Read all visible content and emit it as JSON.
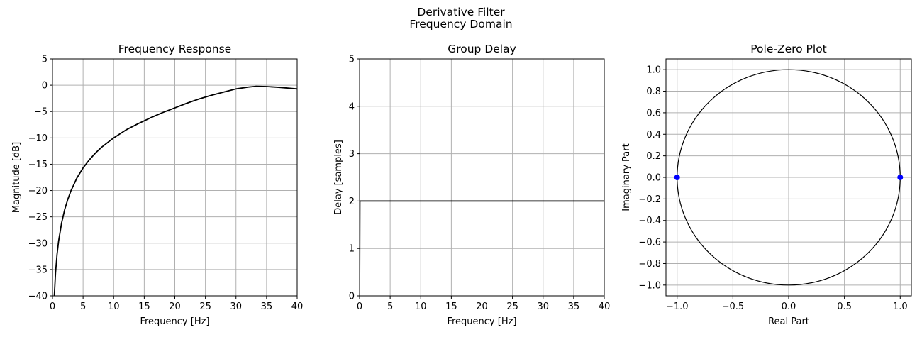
{
  "figure": {
    "suptitle_line1": "Derivative Filter",
    "suptitle_line2": "Frequency Domain"
  },
  "chart_data": [
    {
      "type": "line",
      "title": "Frequency Response",
      "xlabel": "Frequency [Hz]",
      "ylabel": "Magnitude [dB]",
      "xlim": [
        0,
        40
      ],
      "ylim": [
        -40,
        5
      ],
      "xticks": [
        0,
        5,
        10,
        15,
        20,
        25,
        30,
        35,
        40
      ],
      "yticks": [
        -40,
        -35,
        -30,
        -25,
        -20,
        -15,
        -10,
        -5,
        0,
        5
      ],
      "grid": true,
      "line_color": "#000000",
      "series": [
        {
          "x": [
            0.3,
            0.5,
            0.75,
            1,
            1.5,
            2,
            2.5,
            3,
            4,
            5,
            6,
            7,
            8,
            10,
            12,
            14,
            16,
            18,
            20,
            22,
            24,
            26,
            28,
            30,
            32,
            33.3,
            35,
            37,
            39,
            40
          ],
          "y": [
            -40.0,
            -35.6,
            -32.1,
            -29.6,
            -26.1,
            -23.6,
            -21.7,
            -20.1,
            -17.6,
            -15.7,
            -14.2,
            -12.9,
            -11.8,
            -10.0,
            -8.5,
            -7.3,
            -6.2,
            -5.2,
            -4.3,
            -3.4,
            -2.6,
            -1.9,
            -1.3,
            -0.7,
            -0.35,
            -0.2,
            -0.25,
            -0.4,
            -0.6,
            -0.7
          ]
        }
      ]
    },
    {
      "type": "line",
      "title": "Group Delay",
      "xlabel": "Frequency [Hz]",
      "ylabel": "Delay [samples]",
      "xlim": [
        0,
        40
      ],
      "ylim": [
        0,
        5
      ],
      "xticks": [
        0,
        5,
        10,
        15,
        20,
        25,
        30,
        35,
        40
      ],
      "yticks": [
        0,
        1,
        2,
        3,
        4,
        5
      ],
      "grid": true,
      "line_color": "#000000",
      "series": [
        {
          "x": [
            0,
            0.05,
            40
          ],
          "y": [
            0,
            2,
            2
          ]
        }
      ]
    },
    {
      "type": "scatter",
      "title": "Pole-Zero Plot",
      "xlabel": "Real Part",
      "ylabel": "Imaginary Part",
      "xlim": [
        -1.1,
        1.1
      ],
      "ylim": [
        -1.1,
        1.1
      ],
      "xticks": [
        -1.0,
        -0.5,
        0.0,
        0.5,
        1.0
      ],
      "xtick_labels": [
        "−1.0",
        "−0.5",
        "0.0",
        "0.5",
        "1.0"
      ],
      "yticks": [
        -1.0,
        -0.8,
        -0.6,
        -0.4,
        -0.2,
        0.0,
        0.2,
        0.4,
        0.6,
        0.8,
        1.0
      ],
      "ytick_labels": [
        "−1.0",
        "−0.8",
        "−0.6",
        "−0.4",
        "−0.2",
        "0.0",
        "0.2",
        "0.4",
        "0.6",
        "0.8",
        "1.0"
      ],
      "grid": true,
      "unit_circle": {
        "radius": 1,
        "color": "#000000"
      },
      "zeros": [
        {
          "real": -1.0,
          "imag": 0.0
        },
        {
          "real": 1.0,
          "imag": 0.0
        }
      ],
      "marker_color": "#0000ff"
    }
  ]
}
